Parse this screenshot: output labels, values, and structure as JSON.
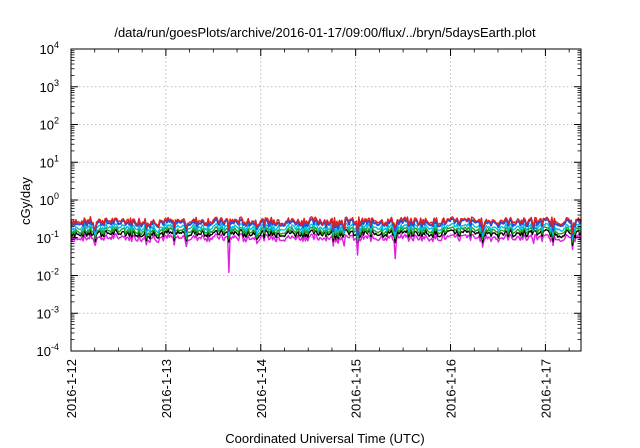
{
  "chart_data": {
    "type": "line",
    "title": "/data/run/goesPlots/archive/2016-01-17/09:00/flux/../bryn/5daysEarth.plot",
    "xlabel": "Coordinated Universal Time (UTC)",
    "ylabel": "cGy/day",
    "yscale": "log",
    "ylim": [
      0.0001,
      10000
    ],
    "xlim": [
      "2016-01-12T00:00",
      "2016-01-17T09:00"
    ],
    "x_ticks": [
      "2016-1-12",
      "2016-1-13",
      "2016-1-14",
      "2016-1-15",
      "2016-1-16",
      "2016-1-17"
    ],
    "y_ticks": [
      {
        "base": "10",
        "exp": "-4"
      },
      {
        "base": "10",
        "exp": "-3"
      },
      {
        "base": "10",
        "exp": "-2"
      },
      {
        "base": "10",
        "exp": "-1"
      },
      {
        "base": "10",
        "exp": "0"
      },
      {
        "base": "10",
        "exp": "1"
      },
      {
        "base": "10",
        "exp": "2"
      },
      {
        "base": "10",
        "exp": "3"
      },
      {
        "base": "10",
        "exp": "4"
      }
    ],
    "grid": true,
    "legend": "none",
    "series_colors": [
      "#e02020",
      "#2050e0",
      "#00c0e0",
      "#20a020",
      "#000000",
      "#e020e0"
    ],
    "series": [
      {
        "color": "#e02020",
        "baseline": 0.28
      },
      {
        "color": "#2050e0",
        "baseline": 0.25
      },
      {
        "color": "#00c0e0",
        "baseline": 0.19
      },
      {
        "color": "#20a020",
        "baseline": 0.155
      },
      {
        "color": "#000000",
        "baseline": 0.13
      },
      {
        "color": "#e020e0",
        "baseline": 0.1
      }
    ],
    "dips": [
      {
        "x": "2016-01-13T16:00",
        "y": 0.012
      },
      {
        "x": "2016-01-15T00:30",
        "y": 0.035
      },
      {
        "x": "2016-01-15T10:00",
        "y": 0.028
      },
      {
        "x": "2016-01-12T06:00",
        "y": 0.075
      },
      {
        "x": "2016-01-14T21:00",
        "y": 0.06
      },
      {
        "x": "2016-01-16T21:00",
        "y": 0.07
      }
    ]
  }
}
